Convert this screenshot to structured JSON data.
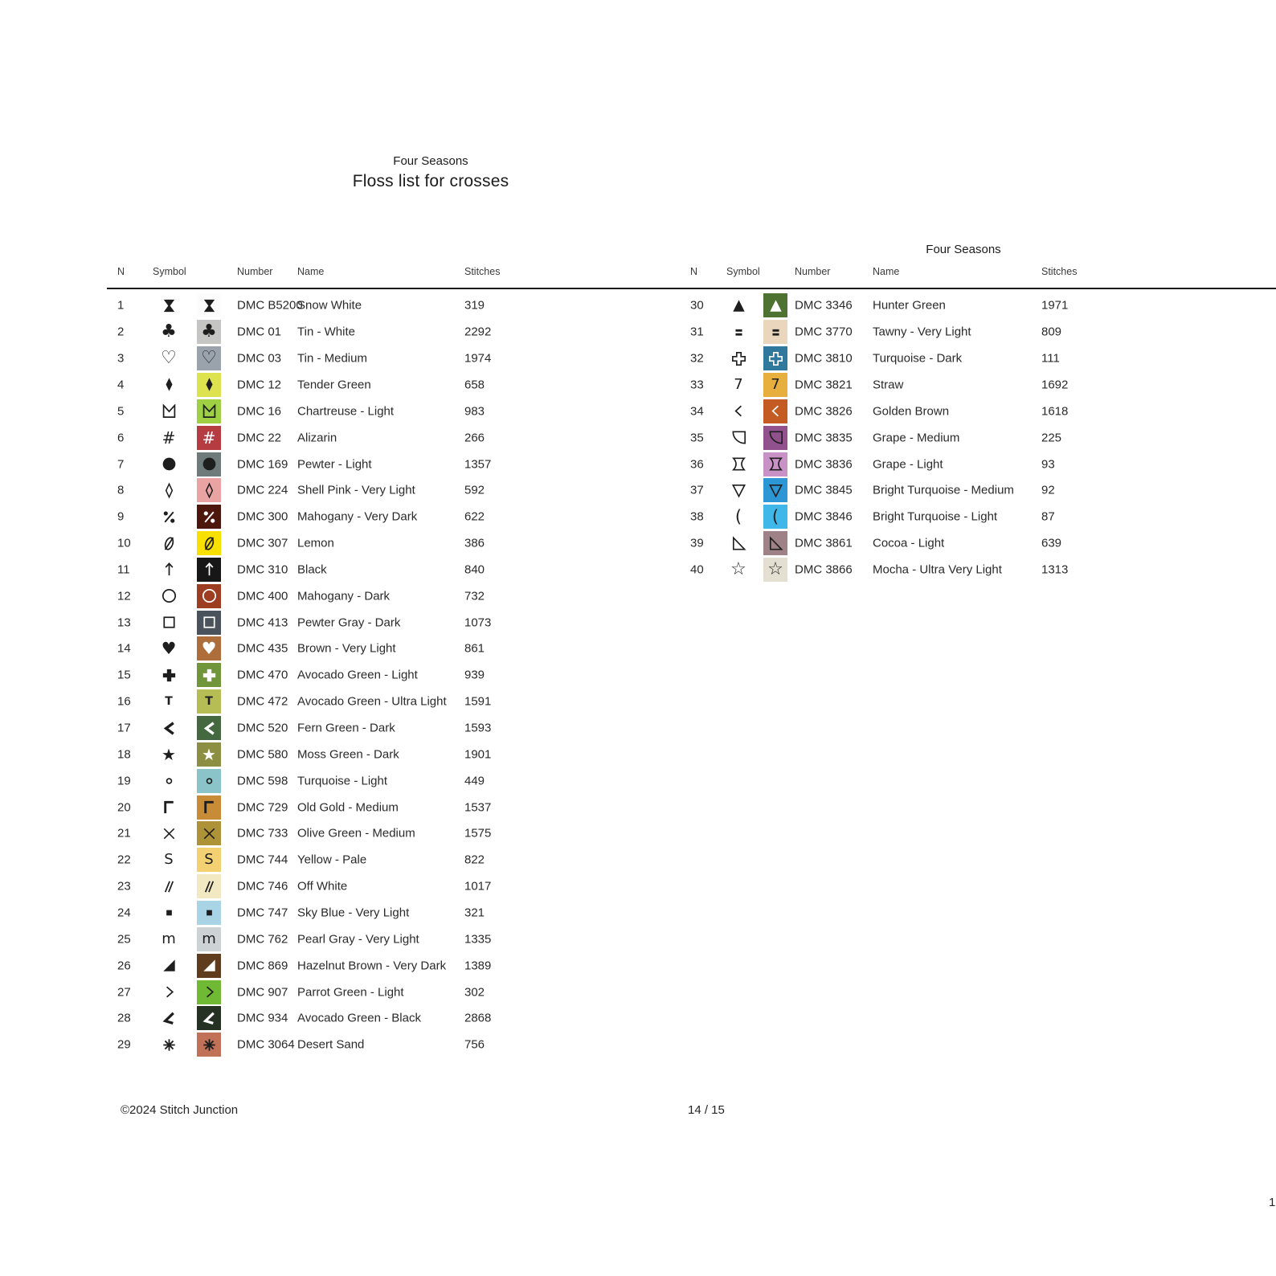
{
  "header": {
    "title_small": "Four Seasons",
    "title_main": "Floss list for crosses"
  },
  "right_table_title": "Four Seasons",
  "columns": {
    "n": "N",
    "symbol": "Symbol",
    "number": "Number",
    "name": "Name",
    "stitches": "Stitches"
  },
  "footer": {
    "copyright": "©2024 Stitch Junction",
    "page": "14 / 15",
    "edge_page_number": "1"
  },
  "colors": {
    "symbol_dark": "#1e1e1e",
    "symbol_light": "#ffffff",
    "rule": "#1a1a1a"
  },
  "rows": [
    {
      "n": "1",
      "icon": "hourglass-filled-icon",
      "number": "DMC B5200",
      "name": "Snow White",
      "stitches": "319",
      "swatch": "#fcfcfc",
      "symbol_on_swatch": "dark"
    },
    {
      "n": "2",
      "icon": "club-icon",
      "number": "DMC 01",
      "name": "Tin - White",
      "stitches": "2292",
      "swatch": "#c5c5c3",
      "symbol_on_swatch": "dark"
    },
    {
      "n": "3",
      "icon": "heart-outline-icon",
      "number": "DMC 03",
      "name": "Tin - Medium",
      "stitches": "1974",
      "swatch": "#9aa2ab",
      "symbol_on_swatch": "dark"
    },
    {
      "n": "4",
      "icon": "diamond-filled-icon",
      "number": "DMC 12",
      "name": "Tender Green",
      "stitches": "658",
      "swatch": "#dde24f",
      "symbol_on_swatch": "dark"
    },
    {
      "n": "5",
      "icon": "crown-m-icon",
      "number": "DMC 16",
      "name": "Chartreuse - Light",
      "stitches": "983",
      "swatch": "#9fd044",
      "symbol_on_swatch": "dark"
    },
    {
      "n": "6",
      "icon": "hash-icon",
      "number": "DMC 22",
      "name": "Alizarin",
      "stitches": "266",
      "swatch": "#b53c41",
      "symbol_on_swatch": "light"
    },
    {
      "n": "7",
      "icon": "circle-filled-icon",
      "number": "DMC 169",
      "name": "Pewter - Light",
      "stitches": "1357",
      "swatch": "#6f7b7a",
      "symbol_on_swatch": "dark"
    },
    {
      "n": "8",
      "icon": "diamond-outline-icon",
      "number": "DMC 224",
      "name": "Shell Pink - Very Light",
      "stitches": "592",
      "swatch": "#e9a3a2",
      "symbol_on_swatch": "dark"
    },
    {
      "n": "9",
      "icon": "percent-icon",
      "number": "DMC 300",
      "name": "Mahogany - Very Dark",
      "stitches": "622",
      "swatch": "#4e170e",
      "symbol_on_swatch": "light"
    },
    {
      "n": "10",
      "icon": "slashed-zero-icon",
      "number": "DMC 307",
      "name": "Lemon",
      "stitches": "386",
      "swatch": "#f8e000",
      "symbol_on_swatch": "dark"
    },
    {
      "n": "11",
      "icon": "arrow-up-icon",
      "number": "DMC 310",
      "name": "Black",
      "stitches": "840",
      "swatch": "#171717",
      "symbol_on_swatch": "light"
    },
    {
      "n": "12",
      "icon": "circle-outline-icon",
      "number": "DMC 400",
      "name": "Mahogany - Dark",
      "stitches": "732",
      "swatch": "#9d3d22",
      "symbol_on_swatch": "light"
    },
    {
      "n": "13",
      "icon": "square-outline-icon",
      "number": "DMC 413",
      "name": "Pewter Gray - Dark",
      "stitches": "1073",
      "swatch": "#4a535b",
      "symbol_on_swatch": "light"
    },
    {
      "n": "14",
      "icon": "heart-filled-icon",
      "number": "DMC 435",
      "name": "Brown - Very Light",
      "stitches": "861",
      "swatch": "#ae6e3b",
      "symbol_on_swatch": "light"
    },
    {
      "n": "15",
      "icon": "cross-heavy-icon",
      "number": "DMC 470",
      "name": "Avocado Green - Light",
      "stitches": "939",
      "swatch": "#70953a",
      "symbol_on_swatch": "light"
    },
    {
      "n": "16",
      "icon": "letter-t-icon",
      "number": "DMC 472",
      "name": "Avocado Green - Ultra Light",
      "stitches": "1591",
      "swatch": "#b6bd55",
      "symbol_on_swatch": "dark"
    },
    {
      "n": "17",
      "icon": "chevron-left-bold-icon",
      "number": "DMC 520",
      "name": "Fern Green - Dark",
      "stitches": "1593",
      "swatch": "#446941",
      "symbol_on_swatch": "light"
    },
    {
      "n": "18",
      "icon": "star-filled-icon",
      "number": "DMC 580",
      "name": "Moss Green - Dark",
      "stitches": "1901",
      "swatch": "#8c8e41",
      "symbol_on_swatch": "light"
    },
    {
      "n": "19",
      "icon": "circle-small-icon",
      "number": "DMC 598",
      "name": "Turquoise - Light",
      "stitches": "449",
      "swatch": "#8ac4c8",
      "symbol_on_swatch": "dark"
    },
    {
      "n": "20",
      "icon": "gamma-icon",
      "number": "DMC 729",
      "name": "Old Gold - Medium",
      "stitches": "1537",
      "swatch": "#c88b36",
      "symbol_on_swatch": "dark"
    },
    {
      "n": "21",
      "icon": "times-icon",
      "number": "DMC 733",
      "name": "Olive Green - Medium",
      "stitches": "1575",
      "swatch": "#ad9238",
      "symbol_on_swatch": "dark"
    },
    {
      "n": "22",
      "icon": "letter-s-icon",
      "number": "DMC 744",
      "name": "Yellow - Pale",
      "stitches": "822",
      "swatch": "#f3d172",
      "symbol_on_swatch": "dark"
    },
    {
      "n": "23",
      "icon": "double-slash-icon",
      "number": "DMC 746",
      "name": "Off White",
      "stitches": "1017",
      "swatch": "#f2e9c3",
      "symbol_on_swatch": "dark"
    },
    {
      "n": "24",
      "icon": "square-small-filled-icon",
      "number": "DMC 747",
      "name": "Sky Blue - Very Light",
      "stitches": "321",
      "swatch": "#a9d4e5",
      "symbol_on_swatch": "dark"
    },
    {
      "n": "25",
      "icon": "letter-m-icon",
      "number": "DMC 762",
      "name": "Pearl Gray - Very Light",
      "stitches": "1335",
      "swatch": "#cdd2d4",
      "symbol_on_swatch": "dark"
    },
    {
      "n": "26",
      "icon": "triangle-corner-filled-icon",
      "number": "DMC 869",
      "name": "Hazelnut Brown - Very Dark",
      "stitches": "1389",
      "swatch": "#5e3c1d",
      "symbol_on_swatch": "light"
    },
    {
      "n": "27",
      "icon": "chevron-right-icon",
      "number": "DMC 907",
      "name": "Parrot Green - Light",
      "stitches": "302",
      "swatch": "#70b935",
      "symbol_on_swatch": "dark"
    },
    {
      "n": "28",
      "icon": "angle-bold-icon",
      "number": "DMC 934",
      "name": "Avocado Green - Black",
      "stitches": "2868",
      "swatch": "#253223",
      "symbol_on_swatch": "light"
    },
    {
      "n": "29",
      "icon": "asterisk-icon",
      "number": "DMC 3064",
      "name": "Desert Sand",
      "stitches": "756",
      "swatch": "#c07157",
      "symbol_on_swatch": "dark"
    },
    {
      "n": "30",
      "icon": "triangle-up-filled-icon",
      "number": "DMC 3346",
      "name": "Hunter Green",
      "stitches": "1971",
      "swatch": "#4d7232",
      "symbol_on_swatch": "light"
    },
    {
      "n": "31",
      "icon": "equals-bold-icon",
      "number": "DMC 3770",
      "name": "Tawny - Very Light",
      "stitches": "809",
      "swatch": "#e9d6bd",
      "symbol_on_swatch": "dark"
    },
    {
      "n": "32",
      "icon": "cross-outline-icon",
      "number": "DMC 3810",
      "name": "Turquoise - Dark",
      "stitches": "111",
      "swatch": "#31799c",
      "symbol_on_swatch": "light"
    },
    {
      "n": "33",
      "icon": "digit-seven-icon",
      "number": "DMC 3821",
      "name": "Straw",
      "stitches": "1692",
      "swatch": "#e7af3e",
      "symbol_on_swatch": "dark"
    },
    {
      "n": "34",
      "icon": "chevron-left-icon",
      "number": "DMC 3826",
      "name": "Golden Brown",
      "stitches": "1618",
      "swatch": "#c35b22",
      "symbol_on_swatch": "light"
    },
    {
      "n": "35",
      "icon": "quarter-pie-icon",
      "number": "DMC 3835",
      "name": "Grape - Medium",
      "stitches": "225",
      "swatch": "#91518d",
      "symbol_on_swatch": "dark"
    },
    {
      "n": "36",
      "icon": "hourglass-outline-icon",
      "number": "DMC 3836",
      "name": "Grape - Light",
      "stitches": "93",
      "swatch": "#c992c7",
      "symbol_on_swatch": "dark"
    },
    {
      "n": "37",
      "icon": "triangle-down-outline-icon",
      "number": "DMC 3845",
      "name": "Bright Turquoise - Medium",
      "stitches": "92",
      "swatch": "#2d96d5",
      "symbol_on_swatch": "dark"
    },
    {
      "n": "38",
      "icon": "paren-left-icon",
      "number": "DMC 3846",
      "name": "Bright Turquoise - Light",
      "stitches": "87",
      "swatch": "#3fb7e9",
      "symbol_on_swatch": "dark"
    },
    {
      "n": "39",
      "icon": "triangle-corner-outline-icon",
      "number": "DMC 3861",
      "name": "Cocoa - Light",
      "stitches": "639",
      "swatch": "#9f8287",
      "symbol_on_swatch": "dark"
    },
    {
      "n": "40",
      "icon": "star-outline-icon",
      "number": "DMC 3866",
      "name": "Mocha - Ultra Very Light",
      "stitches": "1313",
      "swatch": "#e4e0d1",
      "symbol_on_swatch": "dark"
    }
  ]
}
